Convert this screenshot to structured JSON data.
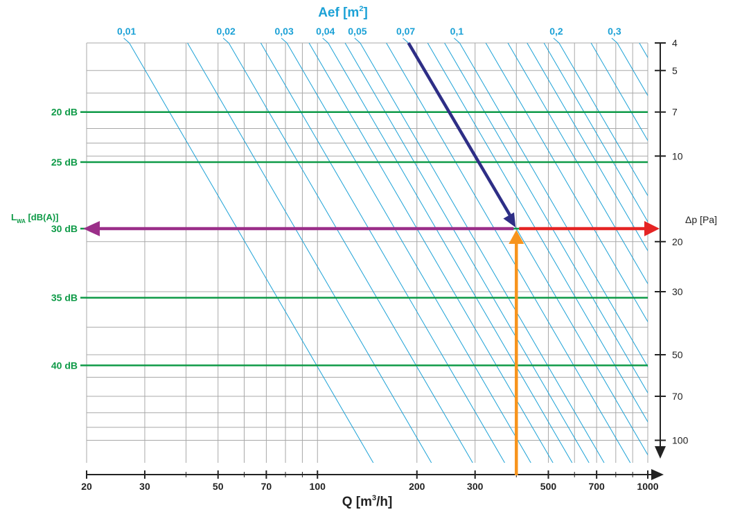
{
  "chart_data": {
    "type": "line",
    "title": "Aef [m²]",
    "x_axis": {
      "label": "Q [m³/h]",
      "scale": "log",
      "range": [
        20,
        1000
      ],
      "ticks": [
        20,
        30,
        50,
        70,
        100,
        200,
        300,
        500,
        700,
        1000
      ],
      "tick_labels": [
        "20",
        "30",
        "50",
        "70",
        "100",
        "200",
        "300",
        "500",
        "700",
        "1000"
      ]
    },
    "top_axis": {
      "label": "Aef [m²]",
      "tick_labels": [
        "0,01",
        "0,02",
        "0,03",
        "0,04",
        "0,05",
        "0,07",
        "0,1",
        "0,2",
        "0,3"
      ],
      "values": [
        0.01,
        0.02,
        0.03,
        0.04,
        0.05,
        0.07,
        0.1,
        0.2,
        0.3
      ]
    },
    "right_axis": {
      "label": "Δp [Pa]",
      "scale": "log",
      "range": [
        4,
        120
      ],
      "ticks": [
        4,
        5,
        7,
        10,
        20,
        30,
        50,
        70,
        100
      ],
      "tick_labels": [
        "4",
        "5",
        "7",
        "10",
        "20",
        "30",
        "50",
        "70",
        "100"
      ]
    },
    "left_axis": {
      "label": "LWA [dB(A)]",
      "label_main": "L",
      "label_sub": "WA",
      "label_rest": " [dB(A)]",
      "levels": [
        {
          "label": "20 dB",
          "dp": 7
        },
        {
          "label": "25 dB",
          "dp": 10.5
        },
        {
          "label": "30 dB",
          "dp": 18
        },
        {
          "label": "35 dB",
          "dp": 31.5
        },
        {
          "label": "40 dB",
          "dp": 54.5
        }
      ]
    },
    "aef_lines": {
      "description_values": [
        0.01,
        0.015,
        0.02,
        0.025,
        0.03,
        0.035,
        0.04,
        0.045,
        0.05,
        0.06,
        0.07,
        0.08,
        0.09,
        0.1,
        0.12,
        0.14,
        0.16,
        0.18,
        0.2,
        0.25,
        0.3,
        0.35,
        0.4
      ],
      "reference": {
        "q": 400,
        "dp": 18,
        "aef": 0.07
      }
    },
    "example": {
      "q": 400,
      "dp": 18,
      "level": "30 dB",
      "start_aef": 0.07
    },
    "colors": {
      "aef_lines": "#1ba1d6",
      "db_lines": "#0e9a47",
      "grid": "#a8a8a8",
      "axis": "#222222",
      "arrow_aef": "#2e2e86",
      "arrow_q": "#f7941d",
      "arrow_dp": "#e52424",
      "arrow_lwa": "#9b2f89",
      "text_db": "#0e9a47",
      "text_aef": "#1ba1d6"
    },
    "grid": true
  }
}
